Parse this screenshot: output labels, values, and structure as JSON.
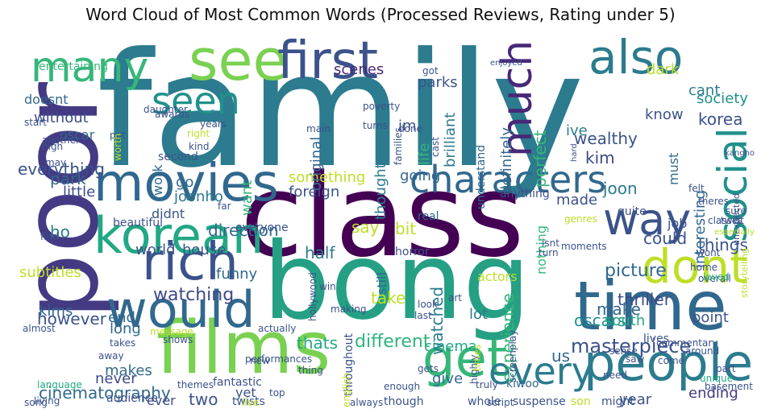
{
  "title": "Word Cloud of Most Common Words (Processed Reviews, Rating under 5)",
  "chart_data": {
    "type": "wordcloud",
    "title": "Word Cloud of Most Common Words (Processed Reviews, Rating under 5)",
    "colormap": "viridis",
    "background": "#ffffff",
    "words": [
      {
        "text": "family",
        "weight": 1.0,
        "color": "#2c7b8e"
      },
      {
        "text": "class",
        "weight": 0.78,
        "color": "#440154"
      },
      {
        "text": "bong",
        "weight": 0.72,
        "color": "#25a084"
      },
      {
        "text": "poor",
        "weight": 0.7,
        "color": "#443a83"
      },
      {
        "text": "films",
        "weight": 0.48,
        "color": "#7ad151"
      },
      {
        "text": "time",
        "weight": 0.42,
        "color": "#31688e"
      },
      {
        "text": "see",
        "weight": 0.38,
        "color": "#7ad151"
      },
      {
        "text": "first",
        "weight": 0.36,
        "color": "#3b528b"
      },
      {
        "text": "movies",
        "weight": 0.36,
        "color": "#31688e"
      },
      {
        "text": "people",
        "weight": 0.34,
        "color": "#2c7b8e"
      },
      {
        "text": "rich",
        "weight": 0.34,
        "color": "#3b528b"
      },
      {
        "text": "would",
        "weight": 0.32,
        "color": "#31688e"
      },
      {
        "text": "korean",
        "weight": 0.32,
        "color": "#22a884"
      },
      {
        "text": "also",
        "weight": 0.32,
        "color": "#2c7b8e"
      },
      {
        "text": "get",
        "weight": 0.32,
        "color": "#35b779"
      },
      {
        "text": "dont",
        "weight": 0.3,
        "color": "#bddf26"
      },
      {
        "text": "social",
        "weight": 0.28,
        "color": "#21918c"
      },
      {
        "text": "characters",
        "weight": 0.28,
        "color": "#31688e"
      },
      {
        "text": "many",
        "weight": 0.28,
        "color": "#35b779"
      },
      {
        "text": "much",
        "weight": 0.26,
        "color": "#482878"
      },
      {
        "text": "way",
        "weight": 0.26,
        "color": "#3b528b"
      },
      {
        "text": "every",
        "weight": 0.24,
        "color": "#2c7b8e"
      },
      {
        "text": "seen",
        "weight": 0.22,
        "color": "#21918c"
      },
      {
        "text": "masterpiece",
        "weight": 0.14,
        "color": "#3b528b"
      },
      {
        "text": "watching",
        "weight": 0.13,
        "color": "#3e4a89"
      },
      {
        "text": "picture",
        "weight": 0.13,
        "color": "#31688e"
      },
      {
        "text": "different",
        "weight": 0.13,
        "color": "#2fb47c"
      },
      {
        "text": "everything",
        "weight": 0.12,
        "color": "#3b528b"
      },
      {
        "text": "however",
        "weight": 0.12,
        "color": "#3b528b"
      },
      {
        "text": "cinematography",
        "weight": 0.12,
        "color": "#31688e"
      },
      {
        "text": "something",
        "weight": 0.12,
        "color": "#bddf26"
      },
      {
        "text": "experience",
        "weight": 0.12,
        "color": "#35b779"
      },
      {
        "text": "definitely",
        "weight": 0.12,
        "color": "#31688e"
      },
      {
        "text": "thriller",
        "weight": 0.12,
        "color": "#3e4a89"
      },
      {
        "text": "ending",
        "weight": 0.11,
        "color": "#443a83"
      },
      {
        "text": "oscars",
        "weight": 0.11,
        "color": "#21918c"
      },
      {
        "text": "cinema",
        "weight": 0.11,
        "color": "#22a884"
      },
      {
        "text": "things",
        "weight": 0.11,
        "color": "#3b528b"
      },
      {
        "text": "perfect",
        "weight": 0.11,
        "color": "#35b779"
      },
      {
        "text": "thats",
        "weight": 0.11,
        "color": "#22a884"
      },
      {
        "text": "parks",
        "weight": 0.11,
        "color": "#3b528b"
      },
      {
        "text": "wealthy",
        "weight": 0.11,
        "color": "#3b528b"
      },
      {
        "text": "watched",
        "weight": 0.11,
        "color": "#2c7b8e"
      },
      {
        "text": "direction",
        "weight": 0.11,
        "color": "#31688e"
      },
      {
        "text": "original",
        "weight": 0.11,
        "color": "#31688e"
      },
      {
        "text": "take",
        "weight": 0.11,
        "color": "#bddf26"
      },
      {
        "text": "funny",
        "weight": 0.11,
        "color": "#31688e"
      },
      {
        "text": "house",
        "weight": 0.11,
        "color": "#3b528b"
      },
      {
        "text": "world",
        "weight": 0.11,
        "color": "#3b528b"
      },
      {
        "text": "subtitles",
        "weight": 0.11,
        "color": "#bddf26"
      },
      {
        "text": "brilliant",
        "weight": 0.11,
        "color": "#2c7b8e"
      },
      {
        "text": "foreign",
        "weight": 0.11,
        "color": "#3b528b"
      },
      {
        "text": "make",
        "weight": 0.11,
        "color": "#31688e"
      },
      {
        "text": "makes",
        "weight": 0.11,
        "color": "#31688e"
      },
      {
        "text": "south",
        "weight": 0.11,
        "color": "#22a884"
      },
      {
        "text": "point",
        "weight": 0.11,
        "color": "#3b528b"
      },
      {
        "text": "going",
        "weight": 0.11,
        "color": "#31688e"
      },
      {
        "text": "thought",
        "weight": 0.11,
        "color": "#2c7b8e"
      },
      {
        "text": "little",
        "weight": 0.11,
        "color": "#3e4a89"
      },
      {
        "text": "without",
        "weight": 0.11,
        "color": "#3e4a89"
      },
      {
        "text": "society",
        "weight": 0.11,
        "color": "#21918c"
      },
      {
        "text": "interesting",
        "weight": 0.11,
        "color": "#31688e"
      },
      {
        "text": "scenes",
        "weight": 0.11,
        "color": "#482878"
      },
      {
        "text": "joonho",
        "weight": 0.11,
        "color": "#2c7b8e"
      },
      {
        "text": "korea",
        "weight": 0.11,
        "color": "#3b528b"
      },
      {
        "text": "know",
        "weight": 0.11,
        "color": "#3b528b"
      },
      {
        "text": "made",
        "weight": 0.11,
        "color": "#3b528b"
      },
      {
        "text": "want",
        "weight": 0.11,
        "color": "#35b779"
      },
      {
        "text": "lot",
        "weight": 0.11,
        "color": "#2c7b8e"
      },
      {
        "text": "say",
        "weight": 0.11,
        "color": "#bddf26"
      },
      {
        "text": "end",
        "weight": 0.11,
        "color": "#31688e"
      },
      {
        "text": "long",
        "weight": 0.11,
        "color": "#31688e"
      },
      {
        "text": "kims",
        "weight": 0.11,
        "color": "#31688e"
      },
      {
        "text": "park",
        "weight": 0.11,
        "color": "#31688e"
      },
      {
        "text": "kim",
        "weight": 0.11,
        "color": "#3e4a89"
      },
      {
        "text": "joon",
        "weight": 0.11,
        "color": "#2c7b8e"
      },
      {
        "text": "could",
        "weight": 0.11,
        "color": "#3b528b"
      },
      {
        "text": "half",
        "weight": 0.11,
        "color": "#2c7b8e"
      },
      {
        "text": "bit",
        "weight": 0.11,
        "color": "#bddf26"
      },
      {
        "text": "two",
        "weight": 0.11,
        "color": "#3b528b"
      },
      {
        "text": "year",
        "weight": 0.11,
        "color": "#3b528b"
      },
      {
        "text": "us",
        "weight": 0.11,
        "color": "#31688e"
      },
      {
        "text": "ho",
        "weight": 0.11,
        "color": "#2c7b8e"
      },
      {
        "text": "go",
        "weight": 0.11,
        "color": "#31688e"
      },
      {
        "text": "ive",
        "weight": 0.11,
        "color": "#2c7b8e"
      },
      {
        "text": "im",
        "weight": 0.11,
        "color": "#3b528b"
      },
      {
        "text": "life",
        "weight": 0.11,
        "color": "#35b779"
      },
      {
        "text": "must",
        "weight": 0.11,
        "color": "#31688e"
      },
      {
        "text": "give",
        "weight": 0.11,
        "color": "#31688e"
      },
      {
        "text": "never",
        "weight": 0.11,
        "color": "#3e4a89"
      },
      {
        "text": "cant",
        "weight": 0.11,
        "color": "#2c7b8e"
      },
      {
        "text": "dark",
        "weight": 0.11,
        "color": "#bddf26"
      },
      {
        "text": "work",
        "weight": 0.1,
        "color": "#31688e"
      },
      {
        "text": "didnt",
        "weight": 0.1,
        "color": "#3b528b"
      },
      {
        "text": "yet",
        "weight": 0.1,
        "color": "#3b528b"
      },
      {
        "text": "ever",
        "weight": 0.1,
        "color": "#3e4a89"
      },
      {
        "text": "job",
        "weight": 0.1,
        "color": "#3b528b"
      },
      {
        "text": "doesnt",
        "weight": 0.1,
        "color": "#31688e"
      },
      {
        "text": "oscar",
        "weight": 0.09,
        "color": "#31688e"
      },
      {
        "text": "still",
        "weight": 0.09,
        "color": "#31688e"
      },
      {
        "text": "nothing",
        "weight": 0.09,
        "color": "#35b779"
      },
      {
        "text": "actors",
        "weight": 0.09,
        "color": "#bddf26"
      },
      {
        "text": "fantastic",
        "weight": 0.08,
        "color": "#3b528b"
      },
      {
        "text": "entertaining",
        "weight": 0.08,
        "color": "#35b779"
      },
      {
        "text": "second",
        "weight": 0.08,
        "color": "#3b528b"
      },
      {
        "text": "anything",
        "weight": 0.08,
        "color": "#3b528b"
      },
      {
        "text": "twists",
        "weight": 0.08,
        "color": "#3b528b"
      },
      {
        "text": "throughout",
        "weight": 0.08,
        "color": "#3b528b"
      },
      {
        "text": "horror",
        "weight": 0.08,
        "color": "#3b528b"
      },
      {
        "text": "audience",
        "weight": 0.08,
        "color": "#3b528b"
      },
      {
        "text": "quite",
        "weight": 0.08,
        "color": "#3b528b"
      },
      {
        "text": "everyone",
        "weight": 0.08,
        "color": "#3b528b"
      },
      {
        "text": "understand",
        "weight": 0.08,
        "color": "#31688e"
      },
      {
        "text": "beautiful",
        "weight": 0.08,
        "color": "#3b528b"
      },
      {
        "text": "real",
        "weight": 0.08,
        "color": "#31688e"
      },
      {
        "text": "lives",
        "weight": 0.08,
        "color": "#3b528b"
      },
      {
        "text": "kiwoo",
        "weight": 0.08,
        "color": "#31688e"
      },
      {
        "text": "whole",
        "weight": 0.08,
        "color": "#3b528b"
      },
      {
        "text": "though",
        "weight": 0.08,
        "color": "#3b528b"
      },
      {
        "text": "suspense",
        "weight": 0.08,
        "color": "#3b528b"
      },
      {
        "text": "son",
        "weight": 0.08,
        "color": "#bddf26"
      },
      {
        "text": "might",
        "weight": 0.08,
        "color": "#3b528b"
      },
      {
        "text": "always",
        "weight": 0.07,
        "color": "#3b528b"
      },
      {
        "text": "script",
        "weight": 0.07,
        "color": "#3b528b"
      },
      {
        "text": "enough",
        "weight": 0.07,
        "color": "#3b528b"
      },
      {
        "text": "gets",
        "weight": 0.07,
        "color": "#3b528b"
      },
      {
        "text": "truly",
        "weight": 0.07,
        "color": "#3b528b"
      },
      {
        "text": "highly",
        "weight": 0.07,
        "color": "#3b528b"
      },
      {
        "text": "screenplay",
        "weight": 0.07,
        "color": "#3b528b"
      },
      {
        "text": "commentary",
        "weight": 0.07,
        "color": "#3b528b"
      },
      {
        "text": "basement",
        "weight": 0.07,
        "color": "#3b528b"
      },
      {
        "text": "unique",
        "weight": 0.07,
        "color": "#22a884"
      },
      {
        "text": "part",
        "weight": 0.07,
        "color": "#3b528b"
      },
      {
        "text": "around",
        "weight": 0.07,
        "color": "#3b528b"
      },
      {
        "text": "come",
        "weight": 0.07,
        "color": "#3b528b"
      },
      {
        "text": "saw",
        "weight": 0.07,
        "color": "#3b528b"
      },
      {
        "text": "need",
        "weight": 0.07,
        "color": "#3b528b"
      },
      {
        "text": "sense",
        "weight": 0.07,
        "color": "#3b528b"
      },
      {
        "text": "overall",
        "weight": 0.07,
        "color": "#3b528b"
      },
      {
        "text": "home",
        "weight": 0.07,
        "color": "#3b528b"
      },
      {
        "text": "loved",
        "weight": 0.07,
        "color": "#35b779"
      },
      {
        "text": "twist",
        "weight": 0.07,
        "color": "#3b528b"
      },
      {
        "text": "classes",
        "weight": 0.07,
        "color": "#3b528b"
      },
      {
        "text": "theres",
        "weight": 0.07,
        "color": "#3b528b"
      },
      {
        "text": "felt",
        "weight": 0.07,
        "color": "#3b528b"
      },
      {
        "text": "sure",
        "weight": 0.07,
        "color": "#3b528b"
      },
      {
        "text": "kangho",
        "weight": 0.06,
        "color": "#3b528b"
      },
      {
        "text": "unexpected",
        "weight": 0.06,
        "color": "#3b528b"
      },
      {
        "text": "storytelling",
        "weight": 0.06,
        "color": "#bddf26"
      },
      {
        "text": "especially",
        "weight": 0.06,
        "color": "#bddf26"
      },
      {
        "text": "wont",
        "weight": 0.06,
        "color": "#3b528b"
      },
      {
        "text": "genres",
        "weight": 0.06,
        "color": "#bddf26"
      },
      {
        "text": "moments",
        "weight": 0.06,
        "color": "#3b528b"
      },
      {
        "text": "isnt",
        "weight": 0.06,
        "color": "#3b528b"
      },
      {
        "text": "turn",
        "weight": 0.06,
        "color": "#3b528b"
      },
      {
        "text": "art",
        "weight": 0.06,
        "color": "#3b528b"
      },
      {
        "text": "look",
        "weight": 0.06,
        "color": "#3b528b"
      },
      {
        "text": "last",
        "weight": 0.06,
        "color": "#3b528b"
      },
      {
        "text": "making",
        "weight": 0.06,
        "color": "#3b528b"
      },
      {
        "text": "win",
        "weight": 0.06,
        "color": "#3b528b"
      },
      {
        "text": "hollywood",
        "weight": 0.06,
        "color": "#3b528b"
      },
      {
        "text": "performances",
        "weight": 0.06,
        "color": "#3b528b"
      },
      {
        "text": "shows",
        "weight": 0.06,
        "color": "#3b528b"
      },
      {
        "text": "thing",
        "weight": 0.06,
        "color": "#3b528b"
      },
      {
        "text": "actually",
        "weight": 0.06,
        "color": "#3b528b"
      },
      {
        "text": "new",
        "weight": 0.06,
        "color": "#3b528b"
      },
      {
        "text": "top",
        "weight": 0.06,
        "color": "#3b528b"
      },
      {
        "text": "themes",
        "weight": 0.06,
        "color": "#3b528b"
      },
      {
        "text": "live",
        "weight": 0.06,
        "color": "#bddf26"
      },
      {
        "text": "english",
        "weight": 0.06,
        "color": "#bddf26"
      },
      {
        "text": "message",
        "weight": 0.06,
        "color": "#bddf26"
      },
      {
        "text": "away",
        "weight": 0.06,
        "color": "#3b528b"
      },
      {
        "text": "takes",
        "weight": 0.06,
        "color": "#3b528b"
      },
      {
        "text": "almost",
        "weight": 0.06,
        "color": "#3b528b"
      },
      {
        "text": "language",
        "weight": 0.06,
        "color": "#22a884"
      },
      {
        "text": "living",
        "weight": 0.06,
        "color": "#3b528b"
      },
      {
        "text": "song",
        "weight": 0.06,
        "color": "#3b528b"
      },
      {
        "text": "find",
        "weight": 0.06,
        "color": "#3b528b"
      },
      {
        "text": "may",
        "weight": 0.06,
        "color": "#3b528b"
      },
      {
        "text": "high",
        "weight": 0.06,
        "color": "#3b528b"
      },
      {
        "text": "another",
        "weight": 0.06,
        "color": "#3b528b"
      },
      {
        "text": "start",
        "weight": 0.06,
        "color": "#3b528b"
      },
      {
        "text": "years",
        "weight": 0.06,
        "color": "#3b528b"
      },
      {
        "text": "right",
        "weight": 0.06,
        "color": "#bddf26"
      },
      {
        "text": "awards",
        "weight": 0.06,
        "color": "#3b528b"
      },
      {
        "text": "daughter",
        "weight": 0.06,
        "color": "#3b528b"
      },
      {
        "text": "kind",
        "weight": 0.06,
        "color": "#3b528b"
      },
      {
        "text": "far",
        "weight": 0.06,
        "color": "#3b528b"
      },
      {
        "text": "put",
        "weight": 0.06,
        "color": "#3b528b"
      },
      {
        "text": "worth",
        "weight": 0.06,
        "color": "#bddf26"
      },
      {
        "text": "main",
        "weight": 0.06,
        "color": "#3b528b"
      },
      {
        "text": "turns",
        "weight": 0.06,
        "color": "#3b528b"
      },
      {
        "text": "poverty",
        "weight": 0.06,
        "color": "#3b528b"
      },
      {
        "text": "done",
        "weight": 0.06,
        "color": "#3b528b"
      },
      {
        "text": "families",
        "weight": 0.06,
        "color": "#3b528b"
      },
      {
        "text": "cast",
        "weight": 0.06,
        "color": "#3b528b"
      },
      {
        "text": "got",
        "weight": 0.06,
        "color": "#3b528b"
      },
      {
        "text": "enjoyed",
        "weight": 0.05,
        "color": "#3b528b"
      },
      {
        "text": "hard",
        "weight": 0.05,
        "color": "#3b528b"
      },
      {
        "text": "times",
        "weight": 0.06,
        "color": "#bddf26"
      }
    ]
  }
}
